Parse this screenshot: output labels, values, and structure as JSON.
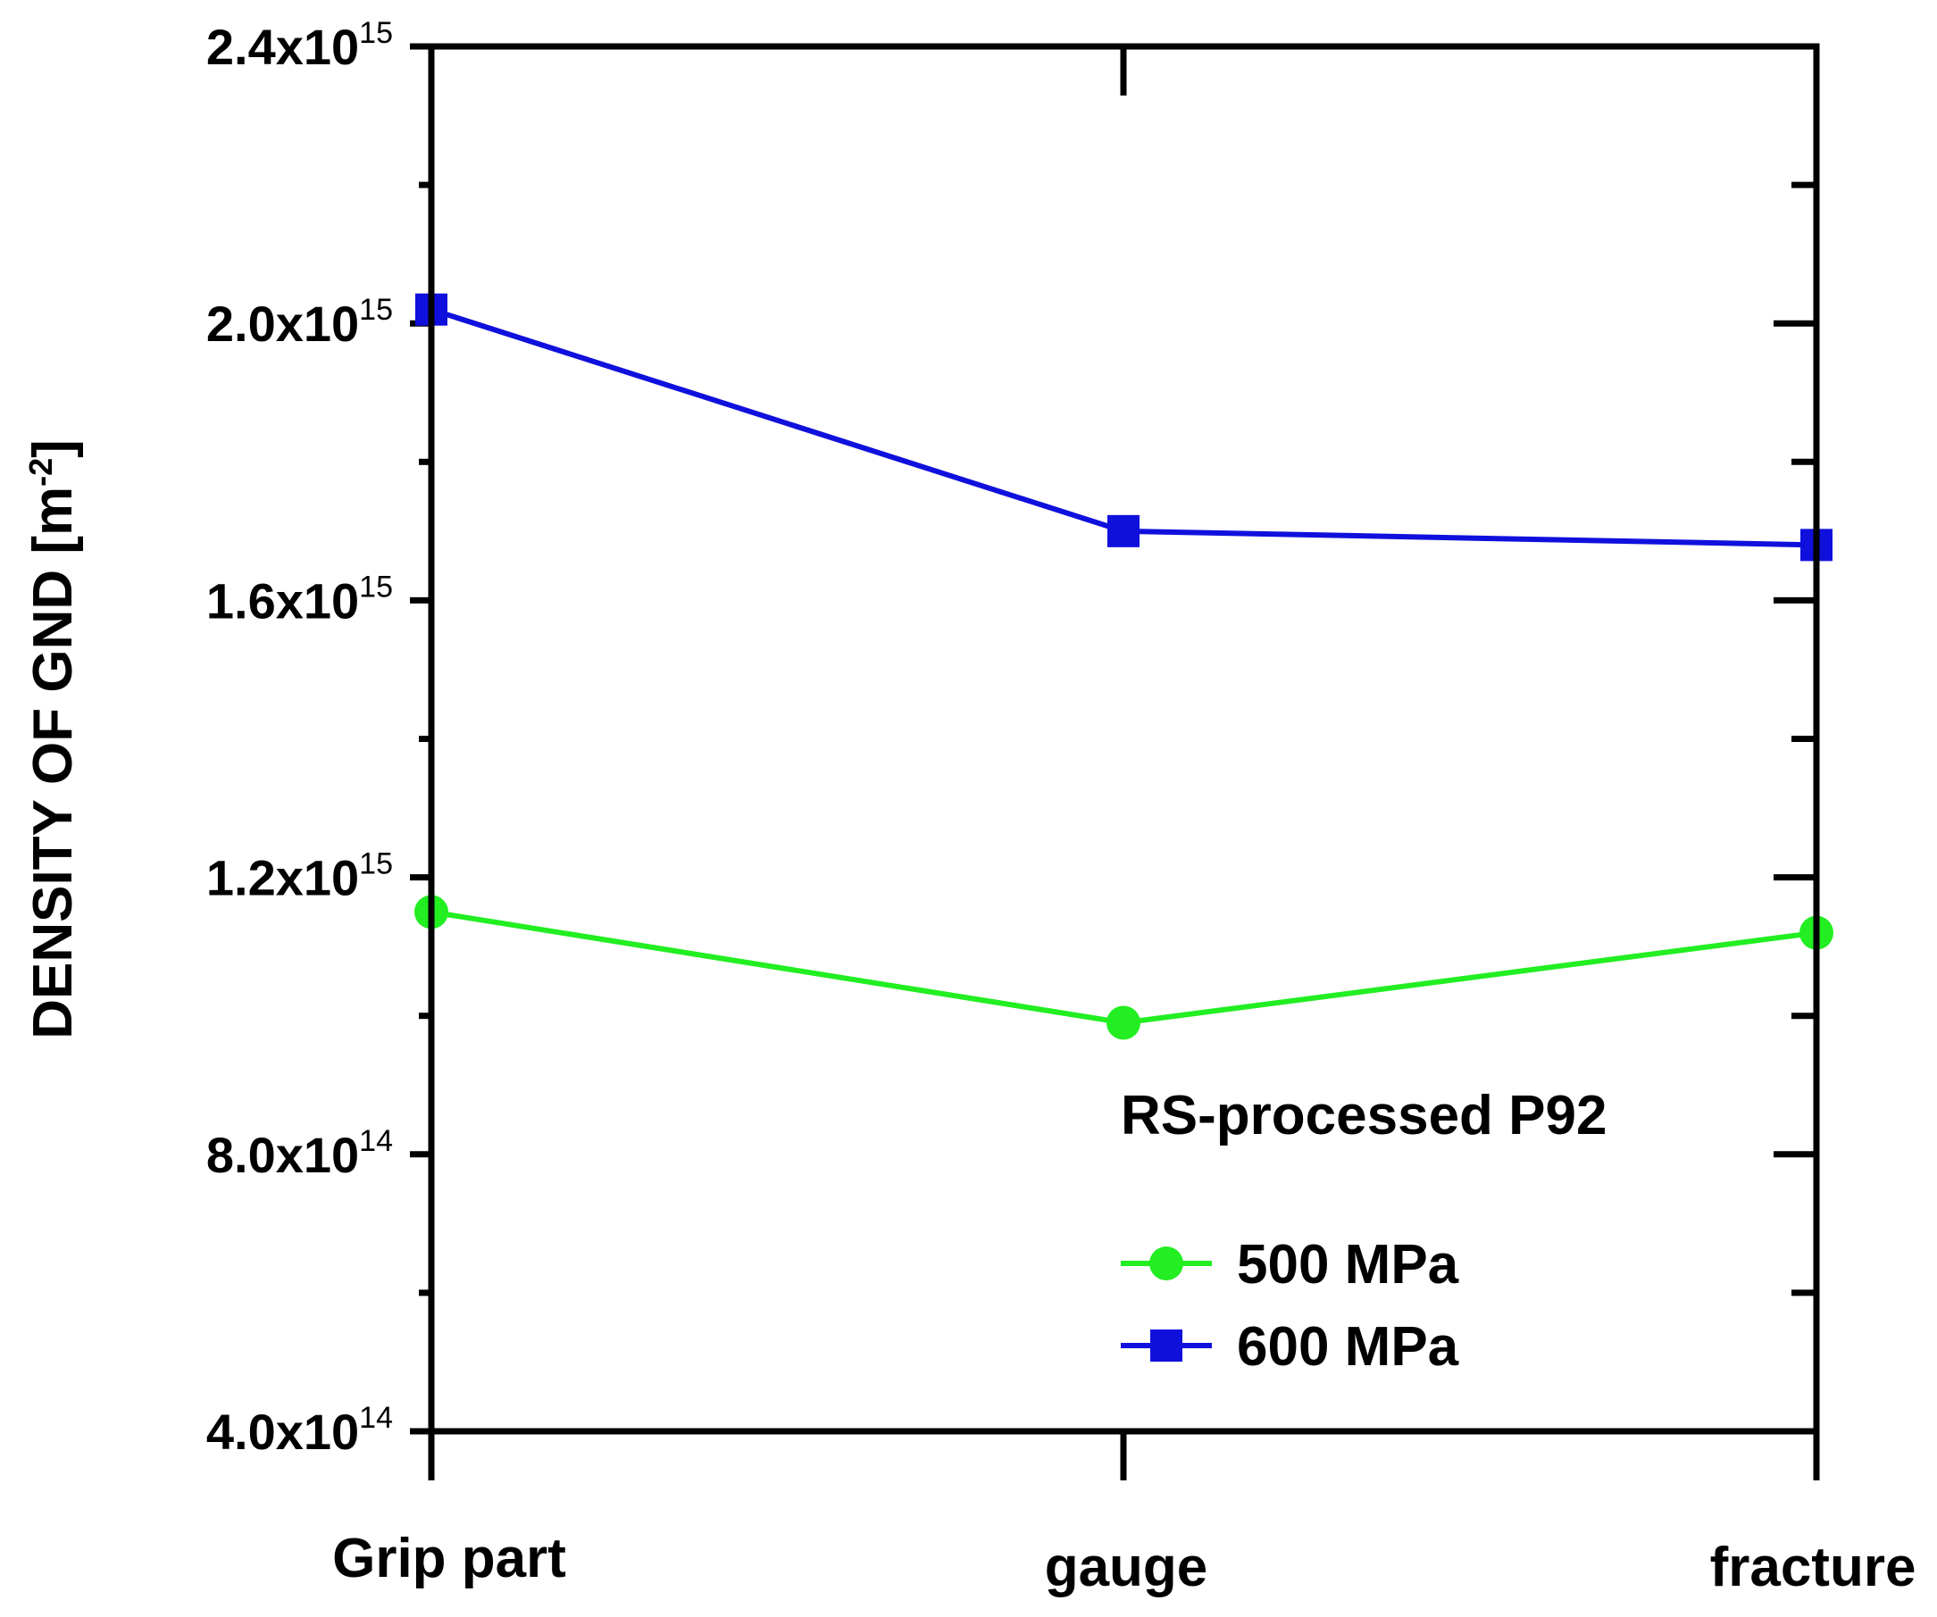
{
  "chart_data": {
    "type": "line",
    "categories": [
      "Grip part",
      "gauge",
      "fracture"
    ],
    "ylabel": "DENSITY OF GND [m",
    "ylabel_superscript": "-2",
    "ylabel_suffix": "]",
    "ylim": [
      400000000000000.0,
      2400000000000000.0
    ],
    "yticks": [
      {
        "mantissa": "4.0x10",
        "exp": "14",
        "value": 400000000000000.0
      },
      {
        "mantissa": "8.0x10",
        "exp": "14",
        "value": 800000000000000.0
      },
      {
        "mantissa": "1.2x10",
        "exp": "15",
        "value": 1200000000000000.0
      },
      {
        "mantissa": "1.6x10",
        "exp": "15",
        "value": 1600000000000000.0
      },
      {
        "mantissa": "2.0x10",
        "exp": "15",
        "value": 2000000000000000.0
      },
      {
        "mantissa": "2.4x10",
        "exp": "15",
        "value": 2400000000000000.0
      }
    ],
    "legend_title": "RS-processed P92",
    "series": [
      {
        "name": "500 MPa",
        "color": "#22ee22",
        "marker": "circle",
        "values": [
          1150000000000000.0,
          990000000000000.0,
          1120000000000000.0
        ]
      },
      {
        "name": "600 MPa",
        "color": "#1010dd",
        "marker": "square",
        "values": [
          2020000000000000.0,
          1700000000000000.0,
          1680000000000000.0
        ]
      }
    ]
  }
}
